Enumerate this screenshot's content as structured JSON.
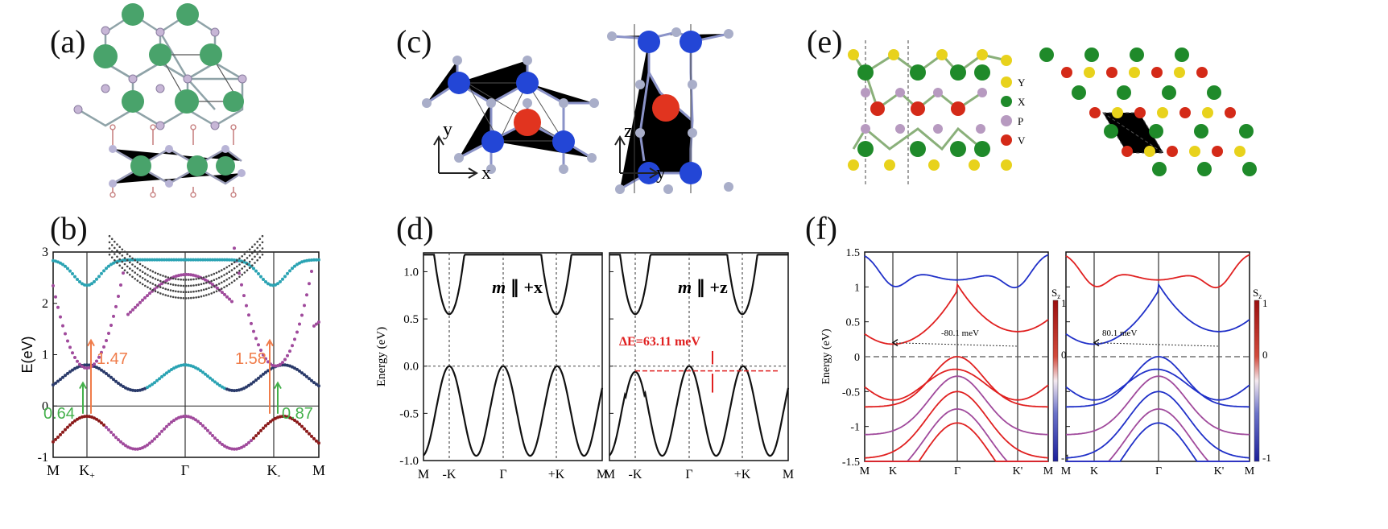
{
  "panel_labels": {
    "a": "(a)",
    "b": "(b)",
    "c": "(c)",
    "d": "(d)",
    "e": "(e)",
    "f": "(f)"
  },
  "panel_c": {
    "axis_x": "x",
    "axis_y": "y",
    "axis_z": "z",
    "axis_y2": "y"
  },
  "panel_e": {
    "legend": [
      {
        "label": "Y",
        "color": "#e8d21c"
      },
      {
        "label": "X",
        "color": "#1f8a2a"
      },
      {
        "label": "P",
        "color": "#b79ac0"
      },
      {
        "label": "V",
        "color": "#d42a18"
      }
    ]
  },
  "colors": {
    "green_atom": "#4aa56a",
    "blue_atom": "#2346d6",
    "red_atom": "#e1341f",
    "grey_atom": "#a9aec9",
    "teal": "#2aa3b3",
    "purple": "#a04a9c",
    "darkred": "#8b1a1a",
    "orange": "#f07c4a",
    "green_annot": "#43b04a",
    "red_line": "#e02020",
    "blue_line": "#2030c8"
  },
  "chart_data": [
    {
      "id": "b",
      "type": "line",
      "ylabel": "E(eV)",
      "ylim": [
        -1,
        3
      ],
      "yticks": [
        "3",
        "2",
        "1",
        "0",
        "-1"
      ],
      "xticks": [
        "M",
        "K+",
        "Γ",
        "K-",
        "M"
      ],
      "annotations": [
        {
          "text": "1.47",
          "color": "#f07c4a"
        },
        {
          "text": "1.58",
          "color": "#f07c4a"
        },
        {
          "text": "0.64",
          "color": "#43b04a"
        },
        {
          "text": "0.87",
          "color": "#43b04a"
        }
      ]
    },
    {
      "id": "d-left",
      "type": "line",
      "ylabel": "Energy (eV)",
      "ylim": [
        -1.0,
        1.2
      ],
      "yticks": [
        "1.0",
        "0.5",
        "0.0",
        "-0.5",
        "-1.0"
      ],
      "xticks": [
        "M",
        "-K",
        "Γ",
        "+K",
        "M"
      ],
      "title_m": "m",
      "title_rest": "∥ +x"
    },
    {
      "id": "d-right",
      "type": "line",
      "ylim": [
        -1.0,
        1.2
      ],
      "xticks": [
        "M",
        "-K",
        "Γ",
        "+K",
        "M"
      ],
      "title_m": "m",
      "title_rest": "∥ +z",
      "annotation": "ΔE=63.11 meV"
    },
    {
      "id": "f-left",
      "type": "line",
      "ylabel": "Energy (eV)",
      "ylim": [
        -1.5,
        1.5
      ],
      "yticks": [
        "1.5",
        "1",
        "0.5",
        "0",
        "-0.5",
        "-1",
        "-1.5"
      ],
      "xticks": [
        "M",
        "K",
        "Γ",
        "K'",
        "M"
      ],
      "annotation": "-80.1 meV",
      "colorbar": {
        "label": "S",
        "sub": "z",
        "ticks": [
          "1",
          "0",
          "-1"
        ]
      }
    },
    {
      "id": "f-right",
      "type": "line",
      "ylim": [
        -1.5,
        1.5
      ],
      "xticks": [
        "M",
        "K",
        "Γ",
        "K'",
        "M"
      ],
      "annotation": "80.1 meV",
      "colorbar": {
        "label": "S",
        "sub": "z",
        "ticks": [
          "1",
          "0",
          "-1"
        ]
      }
    }
  ]
}
